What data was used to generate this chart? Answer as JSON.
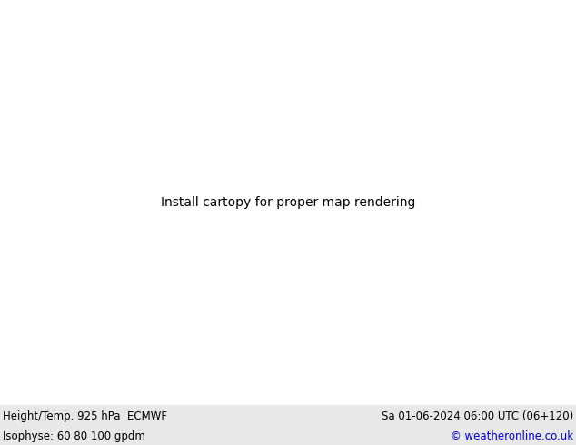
{
  "title_left": "Height/Temp. 925 hPa  ECMWF",
  "title_left2": "Isophyse: 60 80 100 gpdm",
  "title_right": "Sa 01-06-2024 06:00 UTC (06+120)",
  "title_right2": "© weatheronline.co.uk",
  "bg_color": "#e0e0e0",
  "land_color": "#b8f0a0",
  "sea_color": "#e0e0e0",
  "contour_color": "#606060",
  "contour_lw": 0.8,
  "footer_bg": "#e8e8e8",
  "footer_text_color": "#000000",
  "footer_link_color": "#0000cc",
  "figsize": [
    6.34,
    4.9
  ],
  "dpi": 100,
  "extent": [
    -12.0,
    8.0,
    49.0,
    62.0
  ],
  "colored_lines": [
    "#00cccc",
    "#ff8800",
    "#7700cc",
    "#cccc00",
    "#0088ff",
    "#ff0000",
    "#00cc44",
    "#ff44cc",
    "#00cccc",
    "#ff8800",
    "#7700cc"
  ]
}
